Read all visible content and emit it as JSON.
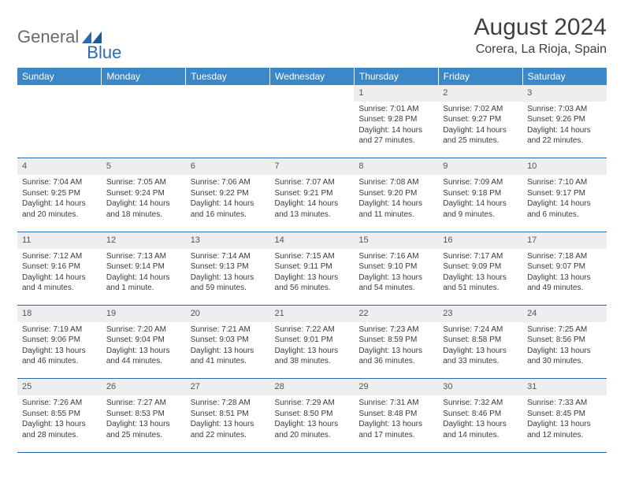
{
  "logo": {
    "text1": "General",
    "text2": "Blue"
  },
  "title": "August 2024",
  "location": "Corera, La Rioja, Spain",
  "colors": {
    "header_bg": "#3b87c8",
    "rule": "#2a6bb0",
    "daynum_bg": "#eceeef",
    "text": "#3a3a3a",
    "logo_blue": "#2a6bb0",
    "logo_gray": "#6a6a6a"
  },
  "daysOfWeek": [
    "Sunday",
    "Monday",
    "Tuesday",
    "Wednesday",
    "Thursday",
    "Friday",
    "Saturday"
  ],
  "weeks": [
    {
      "nums": [
        "",
        "",
        "",
        "",
        "1",
        "2",
        "3"
      ],
      "cells": [
        "",
        "",
        "",
        "",
        "Sunrise: 7:01 AM\nSunset: 9:28 PM\nDaylight: 14 hours and 27 minutes.",
        "Sunrise: 7:02 AM\nSunset: 9:27 PM\nDaylight: 14 hours and 25 minutes.",
        "Sunrise: 7:03 AM\nSunset: 9:26 PM\nDaylight: 14 hours and 22 minutes."
      ]
    },
    {
      "nums": [
        "4",
        "5",
        "6",
        "7",
        "8",
        "9",
        "10"
      ],
      "cells": [
        "Sunrise: 7:04 AM\nSunset: 9:25 PM\nDaylight: 14 hours and 20 minutes.",
        "Sunrise: 7:05 AM\nSunset: 9:24 PM\nDaylight: 14 hours and 18 minutes.",
        "Sunrise: 7:06 AM\nSunset: 9:22 PM\nDaylight: 14 hours and 16 minutes.",
        "Sunrise: 7:07 AM\nSunset: 9:21 PM\nDaylight: 14 hours and 13 minutes.",
        "Sunrise: 7:08 AM\nSunset: 9:20 PM\nDaylight: 14 hours and 11 minutes.",
        "Sunrise: 7:09 AM\nSunset: 9:18 PM\nDaylight: 14 hours and 9 minutes.",
        "Sunrise: 7:10 AM\nSunset: 9:17 PM\nDaylight: 14 hours and 6 minutes."
      ]
    },
    {
      "nums": [
        "11",
        "12",
        "13",
        "14",
        "15",
        "16",
        "17"
      ],
      "cells": [
        "Sunrise: 7:12 AM\nSunset: 9:16 PM\nDaylight: 14 hours and 4 minutes.",
        "Sunrise: 7:13 AM\nSunset: 9:14 PM\nDaylight: 14 hours and 1 minute.",
        "Sunrise: 7:14 AM\nSunset: 9:13 PM\nDaylight: 13 hours and 59 minutes.",
        "Sunrise: 7:15 AM\nSunset: 9:11 PM\nDaylight: 13 hours and 56 minutes.",
        "Sunrise: 7:16 AM\nSunset: 9:10 PM\nDaylight: 13 hours and 54 minutes.",
        "Sunrise: 7:17 AM\nSunset: 9:09 PM\nDaylight: 13 hours and 51 minutes.",
        "Sunrise: 7:18 AM\nSunset: 9:07 PM\nDaylight: 13 hours and 49 minutes."
      ]
    },
    {
      "nums": [
        "18",
        "19",
        "20",
        "21",
        "22",
        "23",
        "24"
      ],
      "cells": [
        "Sunrise: 7:19 AM\nSunset: 9:06 PM\nDaylight: 13 hours and 46 minutes.",
        "Sunrise: 7:20 AM\nSunset: 9:04 PM\nDaylight: 13 hours and 44 minutes.",
        "Sunrise: 7:21 AM\nSunset: 9:03 PM\nDaylight: 13 hours and 41 minutes.",
        "Sunrise: 7:22 AM\nSunset: 9:01 PM\nDaylight: 13 hours and 38 minutes.",
        "Sunrise: 7:23 AM\nSunset: 8:59 PM\nDaylight: 13 hours and 36 minutes.",
        "Sunrise: 7:24 AM\nSunset: 8:58 PM\nDaylight: 13 hours and 33 minutes.",
        "Sunrise: 7:25 AM\nSunset: 8:56 PM\nDaylight: 13 hours and 30 minutes."
      ]
    },
    {
      "nums": [
        "25",
        "26",
        "27",
        "28",
        "29",
        "30",
        "31"
      ],
      "cells": [
        "Sunrise: 7:26 AM\nSunset: 8:55 PM\nDaylight: 13 hours and 28 minutes.",
        "Sunrise: 7:27 AM\nSunset: 8:53 PM\nDaylight: 13 hours and 25 minutes.",
        "Sunrise: 7:28 AM\nSunset: 8:51 PM\nDaylight: 13 hours and 22 minutes.",
        "Sunrise: 7:29 AM\nSunset: 8:50 PM\nDaylight: 13 hours and 20 minutes.",
        "Sunrise: 7:31 AM\nSunset: 8:48 PM\nDaylight: 13 hours and 17 minutes.",
        "Sunrise: 7:32 AM\nSunset: 8:46 PM\nDaylight: 13 hours and 14 minutes.",
        "Sunrise: 7:33 AM\nSunset: 8:45 PM\nDaylight: 13 hours and 12 minutes."
      ]
    }
  ]
}
